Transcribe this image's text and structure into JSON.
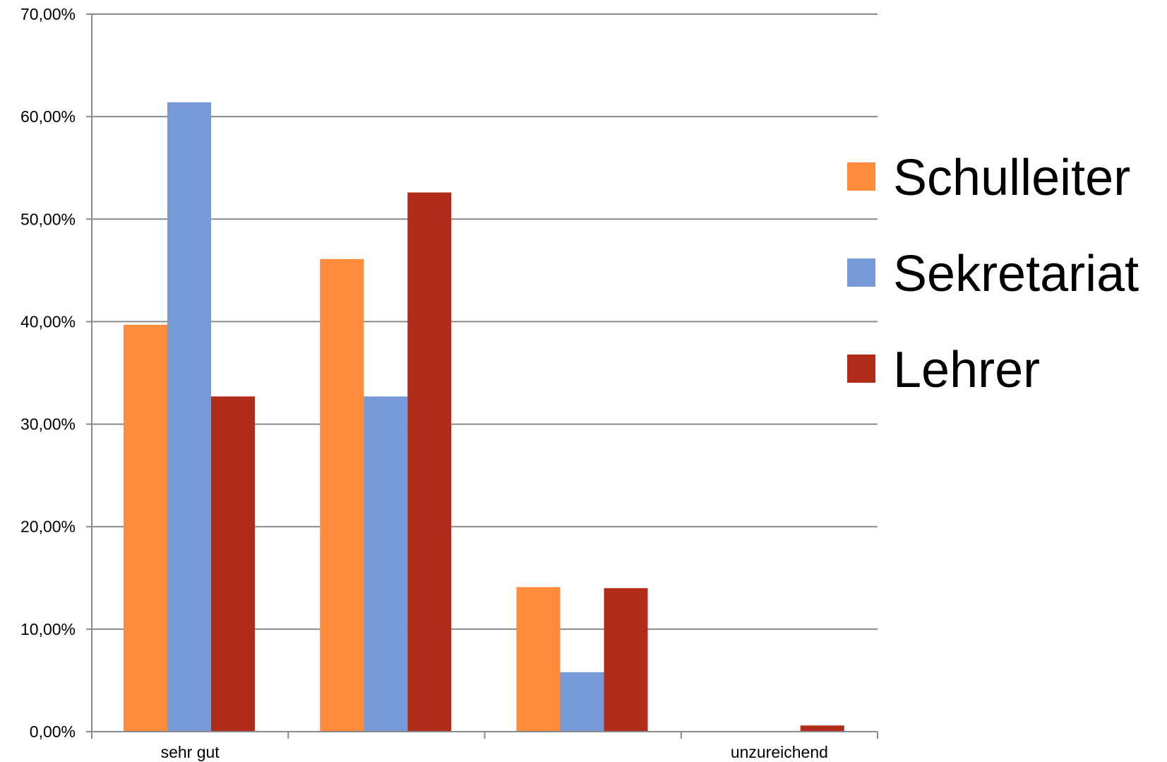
{
  "chart_data": {
    "type": "bar",
    "categories": [
      "sehr gut",
      "",
      "",
      "unzureichend"
    ],
    "series": [
      {
        "name": "Schulleiter",
        "color": "#FF8C3A",
        "values": [
          39.7,
          46.1,
          14.1,
          0.0
        ]
      },
      {
        "name": "Sekretariat",
        "color": "#7799D8",
        "values": [
          61.4,
          32.7,
          5.8,
          0.0
        ]
      },
      {
        "name": "Lehrer",
        "color": "#B02C18",
        "values": [
          32.7,
          52.6,
          14.0,
          0.6
        ]
      }
    ],
    "ylim": [
      0,
      70
    ],
    "yticks": [
      0,
      10,
      20,
      30,
      40,
      50,
      60,
      70
    ],
    "ytick_labels": [
      "0,00%",
      "10,00%",
      "20,00%",
      "30,00%",
      "40,00%",
      "50,00%",
      "60,00%",
      "70,00%"
    ],
    "grid": true,
    "legend_position": "right",
    "title": "",
    "xlabel": "",
    "ylabel": ""
  }
}
